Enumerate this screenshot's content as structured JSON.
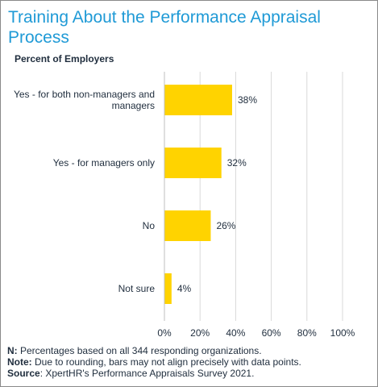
{
  "title": "Training About the Performance Appraisal Process",
  "subtitle": "Percent of Employers",
  "colors": {
    "bar": "#ffd300",
    "title": "#1f9ad6",
    "grid": "#d9d9d9",
    "text": "#1f2d3d"
  },
  "chart_data": {
    "type": "bar",
    "orientation": "horizontal",
    "title": "Training About the Performance Appraisal Process",
    "subtitle": "Percent of Employers",
    "categories": [
      [
        "Yes - for both non-managers and",
        "managers"
      ],
      [
        "Yes - for managers only"
      ],
      [
        "No"
      ],
      [
        "Not sure"
      ]
    ],
    "values": [
      38,
      32,
      26,
      4
    ],
    "data_labels": [
      "38%",
      "32%",
      "26%",
      "4%"
    ],
    "x_ticks": [
      "0%",
      "20%",
      "40%",
      "60%",
      "80%",
      "100%"
    ],
    "xlim": [
      0,
      100
    ],
    "grid": true
  },
  "notes": [
    {
      "bold": "N:",
      "text": " Percentages based on all 344 responding organizations."
    },
    {
      "bold": "Note:",
      "text": " Due to rounding, bars may not align precisely with data points."
    },
    {
      "bold": "Source",
      "text": ": XpertHR's Performance Appraisals Survey 2021."
    }
  ]
}
